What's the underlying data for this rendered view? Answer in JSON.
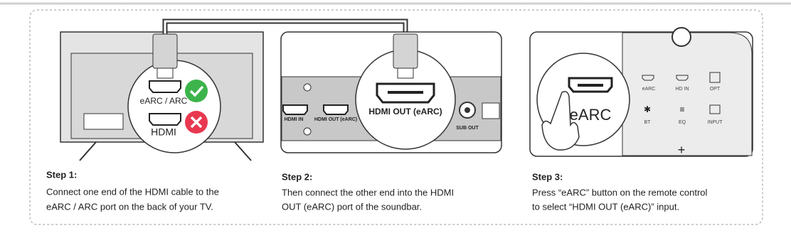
{
  "steps": [
    {
      "title": "Step 1:",
      "lines": [
        "Connect one end of the HDMI cable to the",
        "eARC / ARC port on the back of your TV."
      ],
      "labels": {
        "earc_arc": "eARC / ARC",
        "hdmi": "HDMI"
      }
    },
    {
      "title": "Step 2:",
      "lines": [
        "Then connect the other end into the HDMI",
        "OUT (eARC) port of the soundbar."
      ],
      "labels": {
        "hdmi_in": "HDMI  IN",
        "hdmi_out_small": "HDMI OUT (eARC)",
        "hdmi_out": "HDMI OUT (eARC)",
        "sub_out": "SUB OUT"
      }
    },
    {
      "title": "Step 3:",
      "lines": [
        "Press “eARC” button on the remote control",
        "to select “HDMI OUT (eARC)” input."
      ],
      "labels": {
        "earc_big": "eARC",
        "earc": "eARC",
        "hd_in": "HD IN",
        "opt": "OPT",
        "bt": "BT",
        "eq": "EQ",
        "input": "INPUT"
      }
    }
  ]
}
